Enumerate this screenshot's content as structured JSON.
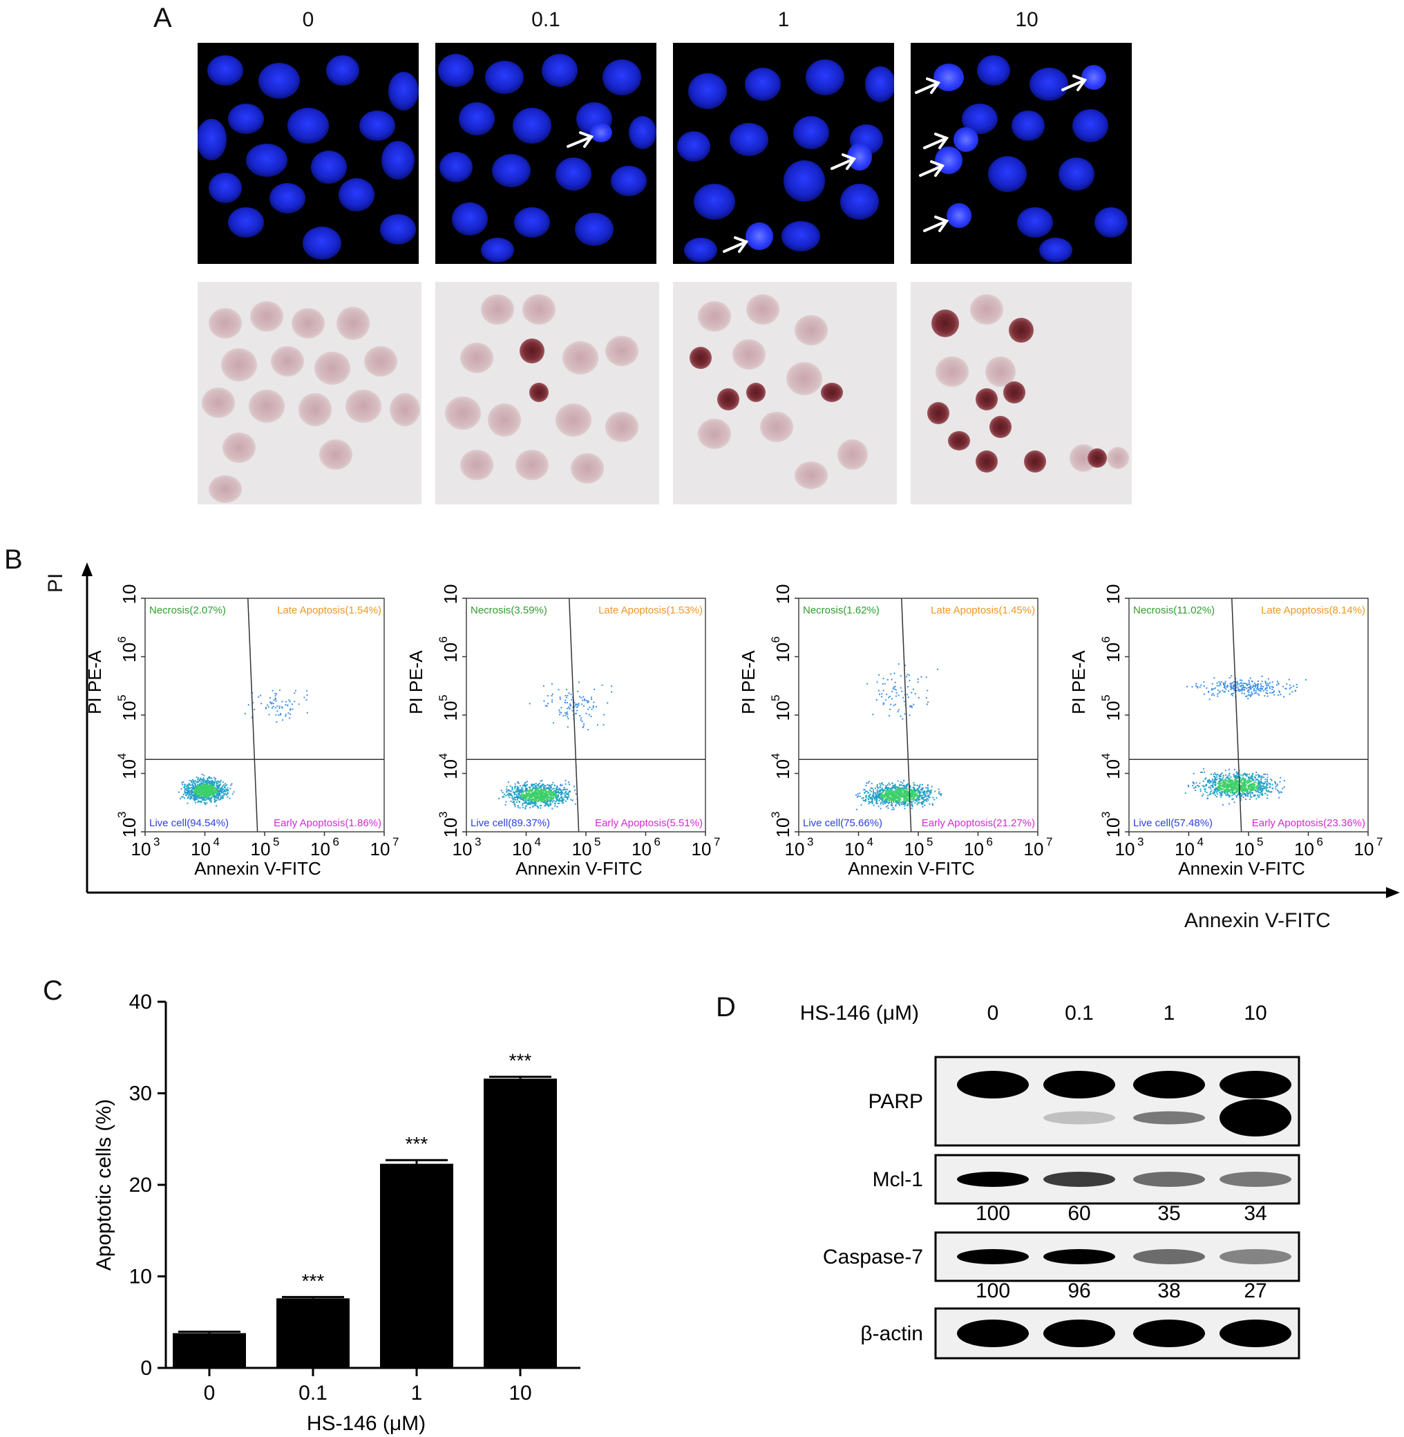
{
  "panel_a": {
    "letter": "A",
    "doses": [
      "0",
      "0.1",
      "1",
      "10"
    ]
  },
  "panel_b": {
    "letter": "B",
    "doses": [
      "0",
      "0.1",
      "1",
      "10"
    ],
    "outer_y_label": "PI",
    "outer_x_label": "Annexin V-FITC",
    "x_axis_label": "Annexin V-FITC",
    "y_axis_label": "PI PE-A",
    "tick_base": "10",
    "tick_exponents": [
      "3",
      "4",
      "5",
      "6",
      "7"
    ],
    "plots": [
      {
        "necrosis": "Necrosis(2.07%)",
        "late": "Late Apoptosis(1.54%)",
        "live": "Live cell(94.54%)",
        "early": "Early Apoptosis(1.86%)"
      },
      {
        "necrosis": "Necrosis(3.59%)",
        "late": "Late Apoptosis(1.53%)",
        "live": "Live cell(89.37%)",
        "early": "Early Apoptosis(5.51%)"
      },
      {
        "necrosis": "Necrosis(1.62%)",
        "late": "Late Apoptosis(1.45%)",
        "live": "Live cell(75.66%)",
        "early": "Early Apoptosis(21.27%)"
      },
      {
        "necrosis": "Necrosis(11.02%)",
        "late": "Late Apoptosis(8.14%)",
        "live": "Live cell(57.48%)",
        "early": "Early Apoptosis(23.36%)"
      }
    ],
    "colors": {
      "necrosis": "#2e9e2e",
      "late": "#f0961e",
      "live": "#2a3fe0",
      "early": "#d02ad0"
    }
  },
  "chart_data": {
    "type": "bar",
    "letter": "C",
    "categories": [
      "0",
      "0.1",
      "1",
      "10"
    ],
    "values": [
      3.8,
      7.6,
      22.3,
      31.6
    ],
    "errors": [
      0.15,
      0.15,
      0.4,
      0.2
    ],
    "significance": [
      "",
      "***",
      "***",
      "***"
    ],
    "title": "",
    "xlabel": "HS-146 (μM)",
    "ylabel": "Apoptotic cells (%)",
    "ylim": [
      0,
      40
    ],
    "yticks": [
      0,
      10,
      20,
      30,
      40
    ],
    "bar_color": "#000000"
  },
  "panel_d": {
    "letter": "D",
    "header_label": "HS-146 (μM)",
    "doses": [
      "0",
      "0.1",
      "1",
      "10"
    ],
    "blots": [
      {
        "name": "PARP",
        "quant": []
      },
      {
        "name": "Mcl-1",
        "quant": [
          "100",
          "60",
          "35",
          "34"
        ]
      },
      {
        "name": "Caspase-7",
        "quant": [
          "100",
          "96",
          "38",
          "27"
        ]
      },
      {
        "name": "β-actin",
        "quant": []
      }
    ]
  }
}
